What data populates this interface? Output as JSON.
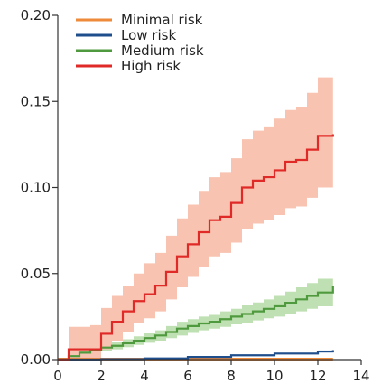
{
  "chart_data": {
    "type": "line",
    "title": "",
    "xlabel": "",
    "ylabel": "",
    "xlim": [
      0,
      14
    ],
    "ylim": [
      0,
      0.2
    ],
    "grid": false,
    "legend_position": "top-left",
    "x_ticks": [
      {
        "value": 0,
        "label": "0"
      },
      {
        "value": 2,
        "label": "2"
      },
      {
        "value": 4,
        "label": "4"
      },
      {
        "value": 6,
        "label": "6"
      },
      {
        "value": 8,
        "label": "8"
      },
      {
        "value": 10,
        "label": "10"
      },
      {
        "value": 12,
        "label": "12"
      },
      {
        "value": 14,
        "label": "14"
      }
    ],
    "y_ticks": [
      {
        "value": 0,
        "label": "0.00"
      },
      {
        "value": 0.05,
        "label": "0.05"
      },
      {
        "value": 0.1,
        "label": "0.10"
      },
      {
        "value": 0.15,
        "label": "0.15"
      },
      {
        "value": 0.2,
        "label": "0.20"
      }
    ],
    "series": [
      {
        "name": "Minimal risk",
        "color": "#ee8a3a",
        "band_color": "#f6c89a",
        "x": [
          0,
          12.7
        ],
        "y": [
          0,
          0
        ],
        "lower": [
          0,
          0
        ],
        "upper": [
          0,
          0
        ]
      },
      {
        "name": "Low risk",
        "color": "#1f4e8c",
        "band_color": "#a9bfdc",
        "x": [
          0,
          2,
          4,
          6,
          8,
          10,
          12,
          12.7
        ],
        "y": [
          0,
          0.0002,
          0.0007,
          0.0015,
          0.0025,
          0.0035,
          0.0047,
          0.0055
        ],
        "lower": [
          0,
          0.0001,
          0.0005,
          0.0012,
          0.0021,
          0.003,
          0.0041,
          0.0048
        ],
        "upper": [
          0,
          0.0004,
          0.0009,
          0.0018,
          0.0029,
          0.004,
          0.0053,
          0.0062
        ]
      },
      {
        "name": "Medium risk",
        "color": "#4f9a3e",
        "band_color": "#bfe0b2",
        "x": [
          0,
          0.5,
          1,
          1.5,
          2,
          2.5,
          3,
          3.5,
          4,
          4.5,
          5,
          5.5,
          6,
          6.5,
          7,
          7.5,
          8,
          8.5,
          9,
          9.5,
          10,
          10.5,
          11,
          11.5,
          12,
          12.7
        ],
        "y": [
          0,
          0.002,
          0.004,
          0.0055,
          0.007,
          0.008,
          0.0095,
          0.011,
          0.0125,
          0.014,
          0.016,
          0.018,
          0.0195,
          0.021,
          0.022,
          0.0235,
          0.025,
          0.0265,
          0.028,
          0.0295,
          0.031,
          0.033,
          0.035,
          0.037,
          0.039,
          0.043
        ],
        "lower": [
          0,
          0.001,
          0.0025,
          0.004,
          0.005,
          0.006,
          0.0072,
          0.0085,
          0.0098,
          0.011,
          0.0125,
          0.014,
          0.0155,
          0.017,
          0.018,
          0.019,
          0.0205,
          0.0215,
          0.0228,
          0.024,
          0.025,
          0.0265,
          0.028,
          0.0295,
          0.031,
          0.0345
        ],
        "upper": [
          0,
          0.003,
          0.0055,
          0.007,
          0.0088,
          0.01,
          0.0118,
          0.0135,
          0.0152,
          0.017,
          0.0195,
          0.022,
          0.0235,
          0.025,
          0.026,
          0.028,
          0.0295,
          0.0315,
          0.0332,
          0.035,
          0.037,
          0.0395,
          0.042,
          0.0445,
          0.047,
          0.0515
        ]
      },
      {
        "name": "High risk",
        "color": "#e02a27",
        "band_color": "#f8c3b0",
        "x": [
          0,
          0.5,
          1,
          1.5,
          2,
          2.5,
          3,
          3.5,
          4,
          4.5,
          5,
          5.5,
          6,
          6.5,
          7,
          7.5,
          8,
          8.5,
          9,
          9.5,
          10,
          10.5,
          11,
          11.5,
          12,
          12.7
        ],
        "y": [
          0,
          0.006,
          0.006,
          0.006,
          0.015,
          0.022,
          0.028,
          0.034,
          0.038,
          0.043,
          0.051,
          0.06,
          0.067,
          0.074,
          0.081,
          0.083,
          0.091,
          0.1,
          0.104,
          0.106,
          0.11,
          0.115,
          0.116,
          0.122,
          0.13,
          0.131
        ],
        "lower": [
          0,
          0.001,
          0.001,
          0.001,
          0.006,
          0.011,
          0.016,
          0.021,
          0.024,
          0.028,
          0.035,
          0.042,
          0.048,
          0.054,
          0.06,
          0.062,
          0.068,
          0.076,
          0.079,
          0.081,
          0.084,
          0.088,
          0.089,
          0.094,
          0.1,
          0.1
        ],
        "upper": [
          0,
          0.019,
          0.019,
          0.02,
          0.03,
          0.037,
          0.043,
          0.05,
          0.056,
          0.062,
          0.072,
          0.082,
          0.09,
          0.098,
          0.106,
          0.109,
          0.117,
          0.128,
          0.133,
          0.135,
          0.14,
          0.145,
          0.147,
          0.155,
          0.164,
          0.166
        ]
      }
    ]
  }
}
